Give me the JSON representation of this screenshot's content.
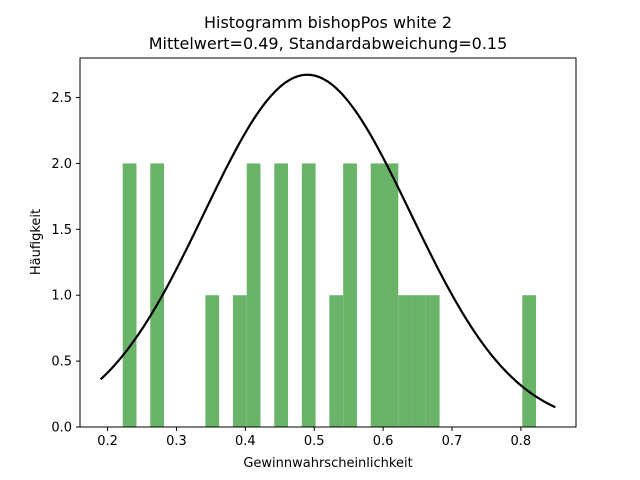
{
  "chart_data": {
    "type": "bar",
    "title": "Histogramm bishopPos white 2",
    "subtitle": "Mittelwert=0.49, Standardabweichung=0.15",
    "xlabel": "Gewinnwahrscheinlichkeit",
    "ylabel": "Häufigkeit",
    "xlim": [
      0.16,
      0.88
    ],
    "ylim": [
      0,
      2.8
    ],
    "x_ticks": [
      0.2,
      0.3,
      0.4,
      0.5,
      0.6,
      0.7,
      0.8
    ],
    "x_tick_labels": [
      "0.2",
      "0.3",
      "0.4",
      "0.5",
      "0.6",
      "0.7",
      "0.8"
    ],
    "y_ticks": [
      0.0,
      0.5,
      1.0,
      1.5,
      2.0,
      2.5
    ],
    "y_tick_labels": [
      "0.0",
      "0.5",
      "1.0",
      "1.5",
      "2.0",
      "2.5"
    ],
    "bar_color": "#6ab46a",
    "curve_color": "#000000",
    "bins": [
      {
        "x0": 0.222,
        "x1": 0.242,
        "count": 2
      },
      {
        "x0": 0.262,
        "x1": 0.282,
        "count": 2
      },
      {
        "x0": 0.342,
        "x1": 0.362,
        "count": 1
      },
      {
        "x0": 0.382,
        "x1": 0.402,
        "count": 1
      },
      {
        "x0": 0.402,
        "x1": 0.422,
        "count": 2
      },
      {
        "x0": 0.442,
        "x1": 0.462,
        "count": 2
      },
      {
        "x0": 0.482,
        "x1": 0.502,
        "count": 2
      },
      {
        "x0": 0.522,
        "x1": 0.542,
        "count": 1
      },
      {
        "x0": 0.542,
        "x1": 0.562,
        "count": 2
      },
      {
        "x0": 0.582,
        "x1": 0.602,
        "count": 2
      },
      {
        "x0": 0.602,
        "x1": 0.622,
        "count": 2
      },
      {
        "x0": 0.622,
        "x1": 0.642,
        "count": 1
      },
      {
        "x0": 0.642,
        "x1": 0.662,
        "count": 1
      },
      {
        "x0": 0.662,
        "x1": 0.682,
        "count": 1
      },
      {
        "x0": 0.802,
        "x1": 0.822,
        "count": 1
      }
    ],
    "normal_curve": {
      "mean": 0.49,
      "std": 0.15,
      "scale": 1.005,
      "x_range": [
        0.19,
        0.85
      ]
    }
  }
}
